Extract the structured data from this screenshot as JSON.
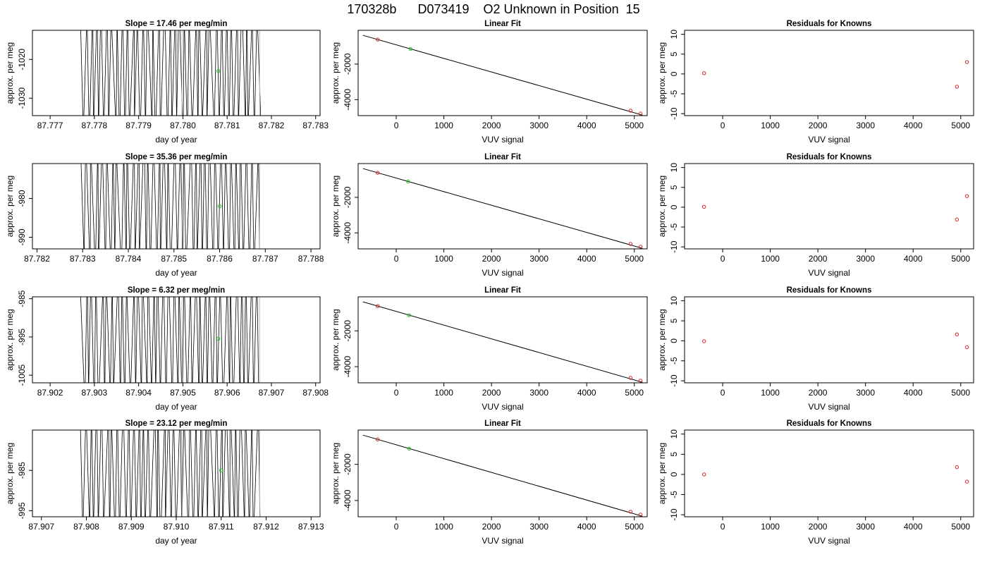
{
  "page_title": "170328b      D073419    O2 Unknown in Position  15",
  "colors": {
    "known_points": "#d62728",
    "unknown_points": "#22c022",
    "trace": "#000000",
    "light_trace": "#bdbdbd"
  },
  "chart_data": [
    {
      "type": "line",
      "panel": "timeseries",
      "row": 1,
      "title": "Slope =  17.46  per meg/min",
      "xlabel": "day of year",
      "ylabel": "approx. per meg",
      "xlim": [
        87.7766,
        87.7831
      ],
      "ylim": [
        -1034.5,
        -1012.5
      ],
      "x_ticks": [
        "87.777",
        "87.778",
        "87.779",
        "87.780",
        "87.781",
        "87.782",
        "87.783"
      ],
      "y_ticks": [
        "-1020",
        "-1030"
      ],
      "unknown_point": {
        "x": 87.7808,
        "y": -1023
      }
    },
    {
      "type": "scatter",
      "panel": "fit",
      "row": 1,
      "title": "Linear Fit",
      "xlabel": "VUV signal",
      "ylabel": "approx. per meg",
      "xlim": [
        -800,
        5270
      ],
      "ylim": [
        -4900,
        -100
      ],
      "x_ticks": [
        "0",
        "1000",
        "2000",
        "3000",
        "4000",
        "5000"
      ],
      "y_ticks": [
        "-2000",
        "-4000"
      ],
      "fit_line": [
        [
          -700,
          -380
        ],
        [
          5170,
          -4870
        ]
      ],
      "knowns": [
        [
          -390,
          -620
        ],
        [
          4920,
          -4620
        ],
        [
          5130,
          -4780
        ]
      ],
      "unknown": [
        [
          300,
          -1150
        ]
      ]
    },
    {
      "type": "scatter",
      "panel": "residuals",
      "row": 1,
      "title": "Residuals for Knowns",
      "xlabel": "VUV signal",
      "ylabel": "approx. per meg",
      "xlim": [
        -800,
        5270
      ],
      "ylim": [
        -10.5,
        11
      ],
      "x_ticks": [
        "0",
        "1000",
        "2000",
        "3000",
        "4000",
        "5000"
      ],
      "y_ticks": [
        "10",
        "5",
        "0",
        "-5",
        "-10"
      ],
      "points": [
        [
          -390,
          0.2
        ],
        [
          4920,
          -3.2
        ],
        [
          5130,
          3.0
        ]
      ]
    },
    {
      "type": "line",
      "panel": "timeseries",
      "row": 2,
      "title": "Slope =  35.36  per meg/min",
      "xlabel": "day of year",
      "ylabel": "approx. per meg",
      "xlim": [
        87.7819,
        87.7882
      ],
      "ylim": [
        -993,
        -971
      ],
      "x_ticks": [
        "87.782",
        "87.783",
        "87.784",
        "87.785",
        "87.786",
        "87.787",
        "87.788"
      ],
      "y_ticks": [
        "-980",
        "-990"
      ],
      "unknown_point": {
        "x": 87.786,
        "y": -982
      }
    },
    {
      "type": "scatter",
      "panel": "fit",
      "row": 2,
      "title": "Linear Fit",
      "xlabel": "VUV signal",
      "ylabel": "approx. per meg",
      "xlim": [
        -800,
        5270
      ],
      "ylim": [
        -4900,
        -100
      ],
      "x_ticks": [
        "0",
        "1000",
        "2000",
        "3000",
        "4000",
        "5000"
      ],
      "y_ticks": [
        "-2000",
        "-4000"
      ],
      "fit_line": [
        [
          -700,
          -380
        ],
        [
          5170,
          -4870
        ]
      ],
      "knowns": [
        [
          -390,
          -620
        ],
        [
          4920,
          -4620
        ],
        [
          5130,
          -4780
        ]
      ],
      "unknown": [
        [
          250,
          -1110
        ]
      ]
    },
    {
      "type": "scatter",
      "panel": "residuals",
      "row": 2,
      "title": "Residuals for Knowns",
      "xlabel": "VUV signal",
      "ylabel": "approx. per meg",
      "xlim": [
        -800,
        5270
      ],
      "ylim": [
        -10.5,
        11
      ],
      "x_ticks": [
        "0",
        "1000",
        "2000",
        "3000",
        "4000",
        "5000"
      ],
      "y_ticks": [
        "10",
        "5",
        "0",
        "-5",
        "-10"
      ],
      "points": [
        [
          -390,
          0.1
        ],
        [
          4920,
          -3.1
        ],
        [
          5130,
          2.8
        ]
      ]
    },
    {
      "type": "line",
      "panel": "timeseries",
      "row": 3,
      "title": "Slope =  6.32  per meg/min",
      "xlabel": "day of year",
      "ylabel": "approx. per meg",
      "xlim": [
        87.9016,
        87.9081
      ],
      "ylim": [
        -1007,
        -984.5
      ],
      "x_ticks": [
        "87.902",
        "87.903",
        "87.904",
        "87.905",
        "87.906",
        "87.907",
        "87.908"
      ],
      "y_ticks": [
        "-985",
        "-995",
        "-1005"
      ],
      "unknown_point": {
        "x": 87.9058,
        "y": -995.5
      }
    },
    {
      "type": "scatter",
      "panel": "fit",
      "row": 3,
      "title": "Linear Fit",
      "xlabel": "VUV signal",
      "ylabel": "approx. per meg",
      "xlim": [
        -800,
        5270
      ],
      "ylim": [
        -4900,
        -100
      ],
      "x_ticks": [
        "0",
        "1000",
        "2000",
        "3000",
        "4000",
        "5000"
      ],
      "y_ticks": [
        "-2000",
        "-4000"
      ],
      "fit_line": [
        [
          -700,
          -380
        ],
        [
          5170,
          -4870
        ]
      ],
      "knowns": [
        [
          -390,
          -620
        ],
        [
          4920,
          -4620
        ],
        [
          5130,
          -4780
        ]
      ],
      "unknown": [
        [
          270,
          -1130
        ]
      ]
    },
    {
      "type": "scatter",
      "panel": "residuals",
      "row": 3,
      "title": "Residuals for Knowns",
      "xlabel": "VUV signal",
      "ylabel": "approx. per meg",
      "xlim": [
        -800,
        5270
      ],
      "ylim": [
        -10.5,
        11
      ],
      "x_ticks": [
        "0",
        "1000",
        "2000",
        "3000",
        "4000",
        "5000"
      ],
      "y_ticks": [
        "10",
        "5",
        "0",
        "-5",
        "-10"
      ],
      "points": [
        [
          -390,
          -0.1
        ],
        [
          4920,
          1.6
        ],
        [
          5130,
          -1.6
        ]
      ]
    },
    {
      "type": "line",
      "panel": "timeseries",
      "row": 4,
      "title": "Slope =  23.12  per meg/min",
      "xlabel": "day of year",
      "ylabel": "approx. per meg",
      "xlim": [
        87.9068,
        87.9132
      ],
      "ylim": [
        -996.5,
        -975
      ],
      "x_ticks": [
        "87.907",
        "87.908",
        "87.909",
        "87.910",
        "87.911",
        "87.912",
        "87.913"
      ],
      "y_ticks": [
        "-985",
        "-995"
      ],
      "unknown_point": {
        "x": 87.911,
        "y": -985
      }
    },
    {
      "type": "scatter",
      "panel": "fit",
      "row": 4,
      "title": "Linear Fit",
      "xlabel": "VUV signal",
      "ylabel": "approx. per meg",
      "xlim": [
        -800,
        5270
      ],
      "ylim": [
        -4900,
        -100
      ],
      "x_ticks": [
        "0",
        "1000",
        "2000",
        "3000",
        "4000",
        "5000"
      ],
      "y_ticks": [
        "-2000",
        "-4000"
      ],
      "fit_line": [
        [
          -700,
          -380
        ],
        [
          5170,
          -4870
        ]
      ],
      "knowns": [
        [
          -390,
          -620
        ],
        [
          4920,
          -4620
        ],
        [
          5130,
          -4780
        ]
      ],
      "unknown": [
        [
          270,
          -1130
        ]
      ]
    },
    {
      "type": "scatter",
      "panel": "residuals",
      "row": 4,
      "title": "Residuals for Knowns",
      "xlabel": "VUV signal",
      "ylabel": "approx. per meg",
      "xlim": [
        -800,
        5270
      ],
      "ylim": [
        -10.5,
        11
      ],
      "x_ticks": [
        "0",
        "1000",
        "2000",
        "3000",
        "4000",
        "5000"
      ],
      "y_ticks": [
        "10",
        "5",
        "0",
        "-5",
        "-10"
      ],
      "points": [
        [
          -390,
          0.0
        ],
        [
          4920,
          1.8
        ],
        [
          5130,
          -1.8
        ]
      ]
    }
  ]
}
